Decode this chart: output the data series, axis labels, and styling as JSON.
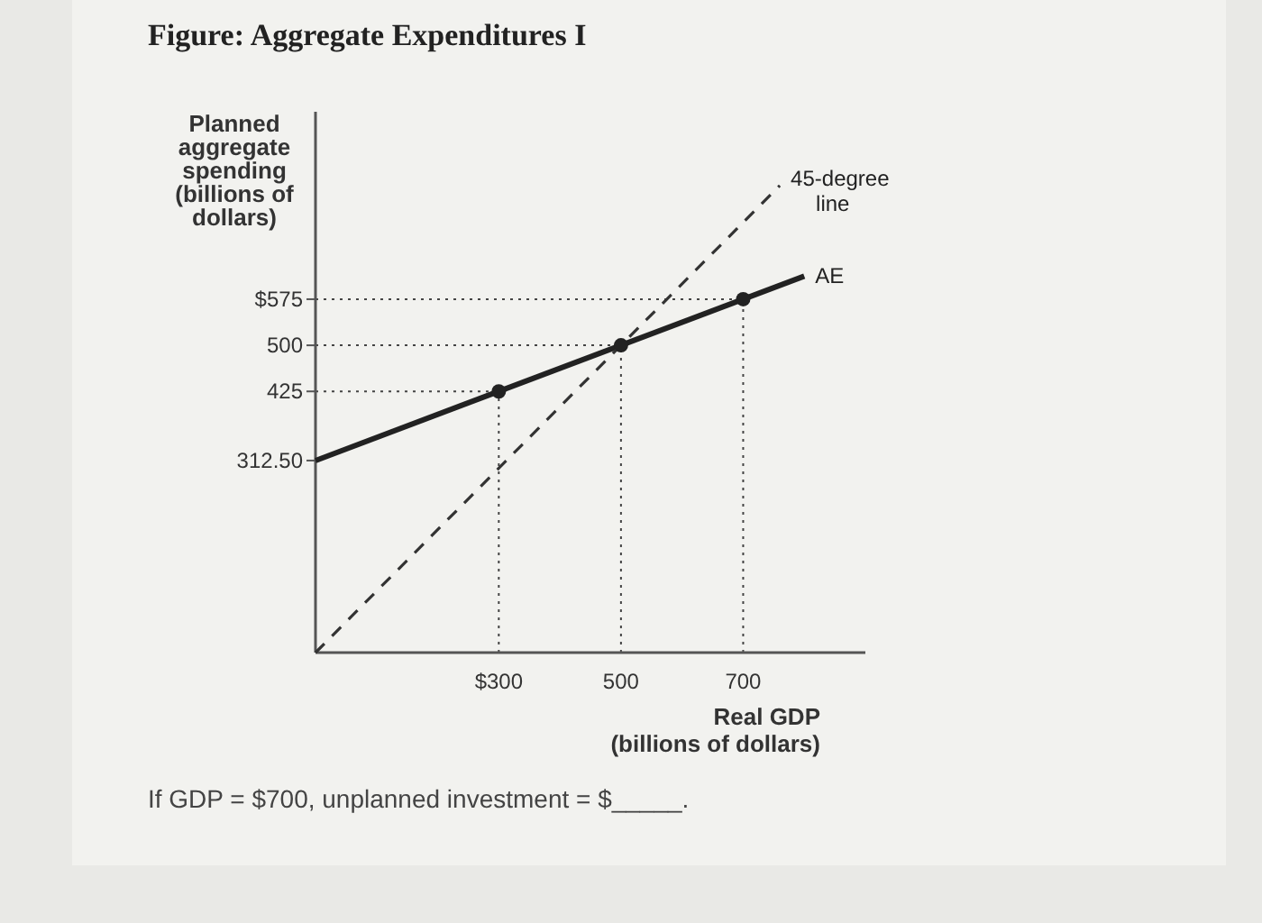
{
  "chart_data": {
    "type": "line",
    "title": "Figure: Aggregate Expenditures I",
    "ylabel": "Planned aggregate spending (billions of dollars)",
    "xlabel": "Real GDP (billions of dollars)",
    "annotations": [
      "If GDP = $700, unplanned investment = $_____."
    ],
    "xlim": [
      0,
      900
    ],
    "ylim": [
      0,
      880
    ],
    "xticks": [
      {
        "value": 300,
        "label": "$300"
      },
      500,
      700
    ],
    "yticks": [
      {
        "value": 312.5,
        "label": "312.50"
      },
      425,
      500,
      {
        "value": 575,
        "label": "$575"
      }
    ],
    "series": [
      {
        "name": "AE",
        "color": "#222222",
        "x": [
          0,
          800
        ],
        "values": [
          312.5,
          612.5
        ],
        "line_style": "solid"
      },
      {
        "name": "45-degree line",
        "color": "#333333",
        "x": [
          0,
          760
        ],
        "values": [
          0,
          760
        ],
        "line_style": "dashed"
      },
      {
        "type": "scatter",
        "color": "#222222",
        "x": [
          300,
          500,
          700
        ],
        "values": [
          425,
          500,
          575
        ],
        "marker": "circle"
      }
    ],
    "ref_lines": [
      {
        "axis": "y",
        "value": 575,
        "line_style": "dotted"
      },
      {
        "axis": "y",
        "value": 500,
        "line_style": "dotted"
      },
      {
        "axis": "y",
        "value": 425,
        "line_style": "dotted"
      },
      {
        "axis": "x",
        "value": 300,
        "line_style": "dotted"
      },
      {
        "axis": "x",
        "value": 500,
        "line_style": "dotted"
      },
      {
        "axis": "x",
        "value": 700,
        "line_style": "dotted"
      }
    ],
    "grid": false
  }
}
